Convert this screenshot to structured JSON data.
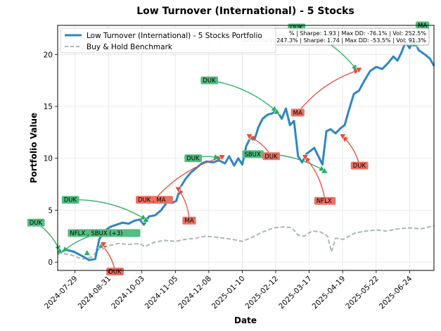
{
  "chart_data": {
    "type": "line",
    "title": "Low Turnover (International) - 5 Stocks",
    "xlabel": "Date",
    "ylabel": "Portfolio Value",
    "xlim": [
      "2024-07-12",
      "2025-07-18"
    ],
    "ylim": [
      -0.8,
      22.8
    ],
    "x_ticks": [
      "2024-07-29",
      "2024-08-31",
      "2024-10-03",
      "2024-11-05",
      "2024-12-08",
      "2025-01-10",
      "2025-02-12",
      "2025-03-17",
      "2025-04-19",
      "2025-05-22",
      "2025-06-24"
    ],
    "y_ticks": [
      0,
      5,
      10,
      15,
      20
    ],
    "grid": true,
    "legend_position": "upper-left",
    "series": [
      {
        "name": "Low Turnover (International) - 5 Stocks Portfolio",
        "color": "#2e86c1",
        "style": "solid",
        "points": [
          [
            "2024-07-12",
            0.8
          ],
          [
            "2024-07-20",
            1.2
          ],
          [
            "2024-07-28",
            1.0
          ],
          [
            "2024-08-05",
            0.6
          ],
          [
            "2024-08-12",
            0.2
          ],
          [
            "2024-08-18",
            0.3
          ],
          [
            "2024-08-22",
            2.2
          ],
          [
            "2024-08-27",
            3.0
          ],
          [
            "2024-09-02",
            3.4
          ],
          [
            "2024-09-08",
            3.6
          ],
          [
            "2024-09-14",
            3.8
          ],
          [
            "2024-09-20",
            3.7
          ],
          [
            "2024-09-26",
            4.0
          ],
          [
            "2024-10-01",
            4.1
          ],
          [
            "2024-10-05",
            3.6
          ],
          [
            "2024-10-10",
            4.4
          ],
          [
            "2024-10-16",
            4.5
          ],
          [
            "2024-10-22",
            5.0
          ],
          [
            "2024-10-28",
            5.8
          ],
          [
            "2024-11-02",
            5.7
          ],
          [
            "2024-11-06",
            5.9
          ],
          [
            "2024-11-10",
            7.2
          ],
          [
            "2024-11-15",
            8.0
          ],
          [
            "2024-11-20",
            8.6
          ],
          [
            "2024-11-25",
            9.0
          ],
          [
            "2024-12-01",
            9.5
          ],
          [
            "2024-12-06",
            9.7
          ],
          [
            "2024-12-12",
            9.6
          ],
          [
            "2024-12-18",
            9.8
          ],
          [
            "2024-12-24",
            9.5
          ],
          [
            "2024-12-28",
            10.2
          ],
          [
            "2025-01-02",
            9.3
          ],
          [
            "2025-01-06",
            10.0
          ],
          [
            "2025-01-10",
            9.4
          ],
          [
            "2025-01-14",
            11.2
          ],
          [
            "2025-01-18",
            12.0
          ],
          [
            "2025-01-22",
            11.8
          ],
          [
            "2025-01-26",
            13.0
          ],
          [
            "2025-01-30",
            13.8
          ],
          [
            "2025-02-04",
            14.2
          ],
          [
            "2025-02-08",
            14.3
          ],
          [
            "2025-02-13",
            14.6
          ],
          [
            "2025-02-18",
            13.8
          ],
          [
            "2025-02-22",
            14.8
          ],
          [
            "2025-02-26",
            13.2
          ],
          [
            "2025-03-02",
            13.6
          ],
          [
            "2025-03-06",
            10.2
          ],
          [
            "2025-03-10",
            9.6
          ],
          [
            "2025-03-14",
            10.4
          ],
          [
            "2025-03-18",
            10.7
          ],
          [
            "2025-03-22",
            11.0
          ],
          [
            "2025-03-26",
            10.2
          ],
          [
            "2025-03-30",
            9.4
          ],
          [
            "2025-04-03",
            12.6
          ],
          [
            "2025-04-07",
            12.8
          ],
          [
            "2025-04-12",
            12.4
          ],
          [
            "2025-04-17",
            12.9
          ],
          [
            "2025-04-21",
            13.2
          ],
          [
            "2025-04-25",
            14.6
          ],
          [
            "2025-04-30",
            16.2
          ],
          [
            "2025-05-05",
            16.5
          ],
          [
            "2025-05-10",
            17.4
          ],
          [
            "2025-05-16",
            18.4
          ],
          [
            "2025-05-22",
            18.8
          ],
          [
            "2025-05-28",
            18.6
          ],
          [
            "2025-06-03",
            19.2
          ],
          [
            "2025-06-08",
            19.8
          ],
          [
            "2025-06-12",
            19.4
          ],
          [
            "2025-06-16",
            20.2
          ],
          [
            "2025-06-20",
            21.2
          ],
          [
            "2025-06-24",
            20.6
          ],
          [
            "2025-06-28",
            21.4
          ],
          [
            "2025-07-03",
            20.4
          ],
          [
            "2025-07-09",
            20.0
          ],
          [
            "2025-07-14",
            19.6
          ],
          [
            "2025-07-18",
            18.9
          ]
        ]
      },
      {
        "name": "Buy & Hold Benchmark",
        "color": "#a9b7b7",
        "style": "dashed",
        "points": [
          [
            "2024-07-12",
            0.9
          ],
          [
            "2024-07-25",
            0.7
          ],
          [
            "2024-08-05",
            0.3
          ],
          [
            "2024-08-15",
            0.5
          ],
          [
            "2024-08-22",
            1.3
          ],
          [
            "2024-09-01",
            1.6
          ],
          [
            "2024-09-10",
            1.8
          ],
          [
            "2024-09-20",
            1.7
          ],
          [
            "2024-10-01",
            1.8
          ],
          [
            "2024-10-06",
            1.5
          ],
          [
            "2024-10-15",
            1.9
          ],
          [
            "2024-10-25",
            2.1
          ],
          [
            "2024-11-05",
            2.0
          ],
          [
            "2024-11-15",
            2.2
          ],
          [
            "2024-11-25",
            2.3
          ],
          [
            "2024-12-05",
            2.5
          ],
          [
            "2024-12-15",
            2.4
          ],
          [
            "2024-12-25",
            2.3
          ],
          [
            "2025-01-05",
            2.1
          ],
          [
            "2025-01-10",
            2.0
          ],
          [
            "2025-01-20",
            2.4
          ],
          [
            "2025-01-30",
            2.9
          ],
          [
            "2025-02-10",
            3.3
          ],
          [
            "2025-02-20",
            3.4
          ],
          [
            "2025-02-28",
            3.3
          ],
          [
            "2025-03-06",
            2.6
          ],
          [
            "2025-03-12",
            2.5
          ],
          [
            "2025-03-20",
            3.0
          ],
          [
            "2025-03-28",
            2.9
          ],
          [
            "2025-04-04",
            2.5
          ],
          [
            "2025-04-08",
            1.0
          ],
          [
            "2025-04-12",
            2.3
          ],
          [
            "2025-04-20",
            2.2
          ],
          [
            "2025-05-01",
            2.8
          ],
          [
            "2025-05-12",
            3.0
          ],
          [
            "2025-05-22",
            3.1
          ],
          [
            "2025-06-01",
            3.0
          ],
          [
            "2025-06-12",
            3.2
          ],
          [
            "2025-06-24",
            3.3
          ],
          [
            "2025-07-05",
            3.2
          ],
          [
            "2025-07-18",
            3.5
          ]
        ]
      }
    ],
    "trade_markers": [
      {
        "date": "2024-07-14",
        "value": 1.1,
        "type": "buy"
      },
      {
        "date": "2024-08-10",
        "value": 0.9,
        "type": "buy"
      },
      {
        "date": "2024-08-24",
        "value": 1.6,
        "type": "buy"
      },
      {
        "date": "2024-08-26",
        "value": 1.7,
        "type": "sell"
      },
      {
        "date": "2024-10-07",
        "value": 4.1,
        "type": "buy"
      },
      {
        "date": "2024-11-08",
        "value": 7.0,
        "type": "sell"
      },
      {
        "date": "2024-12-21",
        "value": 10.1,
        "type": "sell"
      },
      {
        "date": "2025-01-17",
        "value": 12.1,
        "type": "sell"
      },
      {
        "date": "2025-02-13",
        "value": 14.5,
        "type": "buy"
      },
      {
        "date": "2025-03-13",
        "value": 10.1,
        "type": "sell"
      },
      {
        "date": "2025-04-01",
        "value": 8.8,
        "type": "buy"
      },
      {
        "date": "2025-04-19",
        "value": 12.1,
        "type": "sell"
      },
      {
        "date": "2025-05-05",
        "value": 18.5,
        "type": "sell"
      },
      {
        "date": "2025-06-29",
        "value": 21.0,
        "type": "buy"
      }
    ],
    "annotations": [
      {
        "text": "DUK",
        "type": "buy",
        "tx": "2024-06-12",
        "ty": 3.8,
        "mx": "2024-07-14",
        "my": 1.1
      },
      {
        "text": "NFLX , SBUX  (+3)",
        "type": "buy",
        "tx": "2024-07-22",
        "ty": 2.8,
        "mx": "2024-07-17",
        "my": 1.0
      },
      {
        "text": "DUK",
        "type": "sell",
        "tx": "2024-08-29",
        "ty": -0.9,
        "mx": "2024-08-24",
        "my": 1.7
      },
      {
        "text": "DUK",
        "type": "buy",
        "tx": "2024-07-16",
        "ty": 6.0,
        "mx": "2024-10-07",
        "my": 4.1
      },
      {
        "text": "DUK , MA",
        "type": "sell",
        "tx": "2024-09-27",
        "ty": 6.0,
        "mx": "2024-12-21",
        "my": 10.1
      },
      {
        "text": "MA",
        "type": "sell",
        "tx": "2024-11-12",
        "ty": 4.0,
        "mx": "2024-11-08",
        "my": 7.0
      },
      {
        "text": "DUK",
        "type": "buy",
        "tx": "2024-11-14",
        "ty": 10.0,
        "mx": "2024-12-18",
        "my": 10.0
      },
      {
        "text": "DUK",
        "type": "buy",
        "tx": "2024-11-30",
        "ty": 17.5,
        "mx": "2025-02-13",
        "my": 14.5
      },
      {
        "text": "SBUX",
        "type": "buy",
        "tx": "2025-01-10",
        "ty": 10.4,
        "mx": "2025-04-01",
        "my": 8.8
      },
      {
        "text": "DUK",
        "type": "sell",
        "tx": "2025-01-30",
        "ty": 10.2,
        "mx": "2025-01-17",
        "my": 12.1
      },
      {
        "text": "MA",
        "type": "sell",
        "tx": "2025-02-27",
        "ty": 14.4,
        "mx": "2025-05-05",
        "my": 18.5
      },
      {
        "text": "NFLX",
        "type": "sell",
        "tx": "2025-03-22",
        "ty": 5.9,
        "mx": "2025-03-13",
        "my": 10.1
      },
      {
        "text": "DUK",
        "type": "sell",
        "tx": "2025-04-27",
        "ty": 9.3,
        "mx": "2025-04-19",
        "my": 12.1
      },
      {
        "text": "DUK",
        "type": "buy",
        "tx": "2025-02-24",
        "ty": 22.6,
        "mx": "2025-05-03",
        "my": 18.5
      },
      {
        "text": "MA",
        "type": "buy",
        "tx": "2025-06-30",
        "ty": 22.8,
        "mx": "2025-06-29",
        "my": 21.0
      }
    ],
    "stats_box_lines": [
      "% | Sharpe: 1.93 | Max DD: -76.1% | Vol: 252.5%",
      "Benchmark: 247.3% | Sharpe: 1.74 | Max DD: -53.5% | Vol: 91.3%"
    ],
    "colors": {
      "buy": "#27ae60",
      "sell": "#e74c3c",
      "buy_box": "#52be80",
      "sell_box": "#ec7063",
      "grid": "#e5e5e5"
    }
  }
}
